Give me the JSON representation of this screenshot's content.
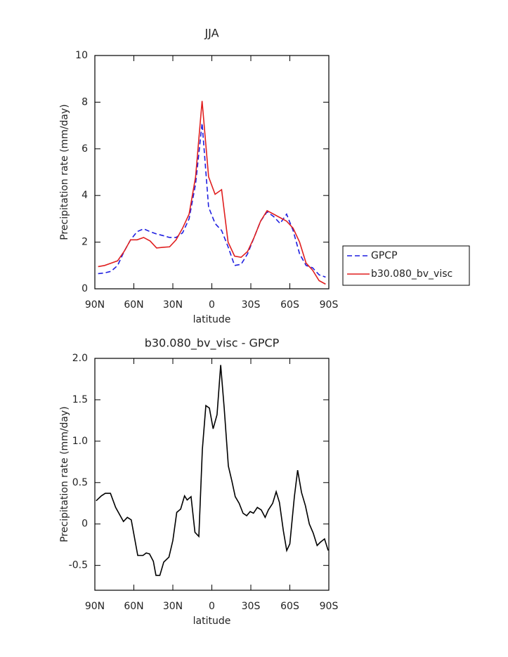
{
  "chart_data": [
    {
      "type": "line",
      "title": "JJA",
      "x_label": "latitude",
      "y_label": "Precipitation rate (mm/day)",
      "x": [
        87.5,
        82.5,
        77.5,
        72.5,
        67.5,
        62.5,
        57.5,
        52.5,
        47.5,
        42.5,
        37.5,
        32.5,
        27.5,
        22.5,
        17.5,
        12.5,
        7.5,
        2.5,
        -2.5,
        -7.5,
        -12.5,
        -17.5,
        -22.5,
        -27.5,
        -32.5,
        -37.5,
        -42.5,
        -47.5,
        -52.5,
        -57.5,
        -62.5,
        -67.5,
        -72.5,
        -77.5,
        -82.5,
        -87.5
      ],
      "series": [
        {
          "name": "GPCP",
          "color": "#1f1fe0",
          "dash": true,
          "values": [
            0.65,
            0.68,
            0.75,
            1.0,
            1.6,
            2.1,
            2.45,
            2.57,
            2.45,
            2.35,
            2.28,
            2.2,
            2.2,
            2.4,
            3.0,
            4.5,
            7.1,
            3.5,
            2.8,
            2.5,
            1.8,
            1.0,
            1.05,
            1.5,
            2.2,
            2.9,
            3.3,
            3.1,
            2.8,
            3.2,
            2.5,
            1.5,
            1.0,
            0.9,
            0.6,
            0.5
          ]
        },
        {
          "name": "b30.080_bv_visc",
          "color": "#e01f1f",
          "dash": false,
          "values": [
            0.95,
            1.0,
            1.1,
            1.2,
            1.6,
            2.1,
            2.1,
            2.2,
            2.05,
            1.75,
            1.78,
            1.8,
            2.1,
            2.6,
            3.2,
            4.8,
            8.05,
            4.8,
            4.05,
            4.25,
            2.0,
            1.4,
            1.35,
            1.6,
            2.2,
            2.9,
            3.35,
            3.2,
            3.05,
            2.9,
            2.6,
            2.0,
            1.1,
            0.8,
            0.35,
            0.2
          ]
        }
      ],
      "xlim": [
        90,
        -90
      ],
      "xticks": [
        {
          "value": 90,
          "label": "90N"
        },
        {
          "value": 60,
          "label": "60N"
        },
        {
          "value": 30,
          "label": "30N"
        },
        0,
        {
          "value": -30,
          "label": "30S"
        },
        {
          "value": -60,
          "label": "60S"
        },
        {
          "value": -90,
          "label": "90S"
        }
      ],
      "ylim": [
        0,
        10
      ],
      "yticks": [
        0,
        2,
        4,
        6,
        8,
        10
      ],
      "legend": "right"
    },
    {
      "type": "line",
      "title": "b30.080_bv_visc - GPCP",
      "x_label": "latitude",
      "y_label": "Precipitation rate (mm/day)",
      "x": [
        89,
        85,
        82,
        78,
        74,
        68,
        65,
        62,
        57,
        53,
        50.5,
        48,
        45,
        43,
        40,
        37,
        33,
        30,
        27,
        24,
        21,
        19,
        16,
        13,
        10,
        7.3,
        4.6,
        1.9,
        -1,
        -4,
        -6.8,
        -9.5,
        -12.7,
        -15.4,
        -18,
        -21,
        -24,
        -26.8,
        -29.5,
        -32,
        -35,
        -38,
        -41,
        -43.5,
        -46.8,
        -49.5,
        -52,
        -55,
        -57.6,
        -60,
        -63.5,
        -66,
        -69,
        -72,
        -75,
        -78,
        -81,
        -83.5,
        -86.7,
        -89.5
      ],
      "values": [
        0.28,
        0.34,
        0.37,
        0.37,
        0.2,
        0.03,
        0.08,
        0.05,
        -0.38,
        -0.38,
        -0.35,
        -0.36,
        -0.45,
        -0.62,
        -0.62,
        -0.46,
        -0.4,
        -0.2,
        0.14,
        0.18,
        0.34,
        0.29,
        0.33,
        -0.1,
        -0.15,
        0.9,
        1.43,
        1.4,
        1.15,
        1.32,
        1.92,
        1.4,
        0.7,
        0.52,
        0.33,
        0.25,
        0.13,
        0.1,
        0.15,
        0.13,
        0.2,
        0.17,
        0.08,
        0.17,
        0.25,
        0.39,
        0.26,
        -0.08,
        -0.32,
        -0.24,
        0.33,
        0.65,
        0.38,
        0.22,
        0.0,
        -0.11,
        -0.26,
        -0.22,
        -0.18,
        -0.32
      ],
      "color": "#000000",
      "xlim": [
        90,
        -90
      ],
      "xticks": [
        {
          "value": 90,
          "label": "90N"
        },
        {
          "value": 60,
          "label": "60N"
        },
        {
          "value": 30,
          "label": "30N"
        },
        0,
        {
          "value": -30,
          "label": "30S"
        },
        {
          "value": -60,
          "label": "60S"
        },
        {
          "value": -90,
          "label": "90S"
        }
      ],
      "ylim": [
        -0.8,
        2.0
      ],
      "yticks": [
        -0.5,
        0,
        0.5,
        {
          "value": 1,
          "label": "1.0"
        },
        1.5,
        {
          "value": 2,
          "label": "2.0"
        }
      ]
    }
  ]
}
